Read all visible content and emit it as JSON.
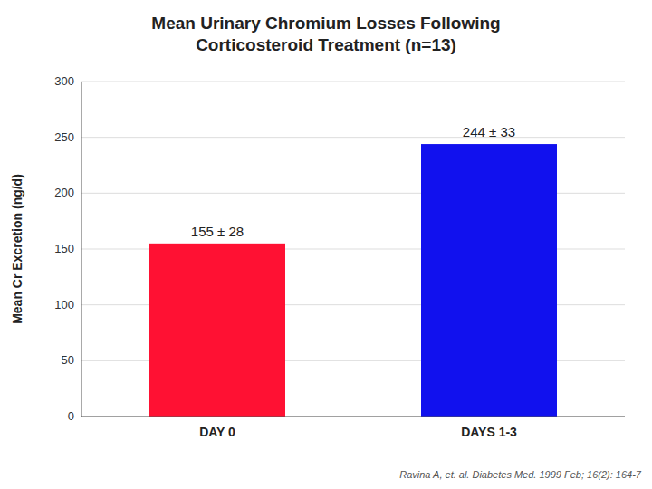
{
  "chart_data": {
    "type": "bar",
    "title": "Mean Urinary Chromium Losses Following\nCorticosteroid Treatment (n=13)",
    "categories": [
      "DAY 0",
      "DAYS 1-3"
    ],
    "values": [
      155,
      244
    ],
    "value_labels": [
      "155 ± 28",
      "244 ± 33"
    ],
    "data_labels": true,
    "colors": [
      "#ff1133",
      "#1111ee"
    ],
    "y_label": "Mean Cr Excretion (ng/d)",
    "ylim": [
      0,
      300
    ],
    "yticks": [
      0,
      50,
      100,
      150,
      200,
      250,
      300
    ],
    "grid": true,
    "annotation": "Ravina A, et. al. Diabetes Med. 1999 Feb; 16(2): 164-7"
  }
}
